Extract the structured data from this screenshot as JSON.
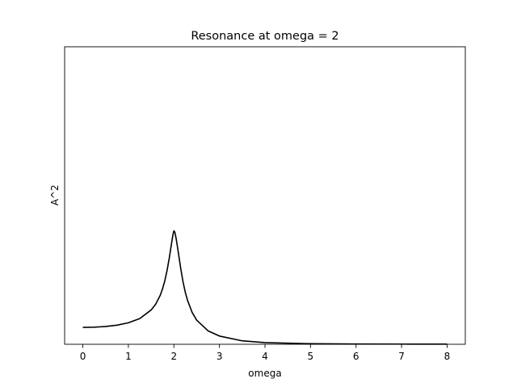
{
  "chart_data": {
    "type": "line",
    "title": "Resonance at omega = 2",
    "xlabel": "omega",
    "ylabel": "A^2",
    "xlim": [
      -0.4,
      8.4
    ],
    "ylim": [
      0.035,
      1.4
    ],
    "xticks": [
      "0",
      "1",
      "2",
      "3",
      "4",
      "5",
      "6",
      "7",
      "8"
    ],
    "yticks": [],
    "grid": false,
    "legend": "none",
    "series": [
      {
        "color": "#000000",
        "x": [
          0,
          0.25,
          0.5,
          0.75,
          1.0,
          1.25,
          1.5,
          1.6,
          1.7,
          1.75,
          1.8,
          1.85,
          1.9,
          1.95,
          1.98,
          2.0,
          2.02,
          2.05,
          2.1,
          2.15,
          2.2,
          2.25,
          2.3,
          2.4,
          2.5,
          2.75,
          3.0,
          3.5,
          4.0,
          5.0,
          6.0,
          7.0,
          8.0
        ],
        "y": [
          0.1125,
          0.1134,
          0.1165,
          0.1226,
          0.1334,
          0.153,
          0.1924,
          0.2191,
          0.2598,
          0.2891,
          0.3264,
          0.3737,
          0.4325,
          0.5,
          0.5388,
          0.5556,
          0.5494,
          0.5195,
          0.4524,
          0.3821,
          0.3222,
          0.2736,
          0.2364,
          0.1813,
          0.1457,
          0.0966,
          0.0728,
          0.0508,
          0.0426,
          0.0376,
          0.0363,
          0.0359,
          0.0357
        ]
      }
    ]
  }
}
